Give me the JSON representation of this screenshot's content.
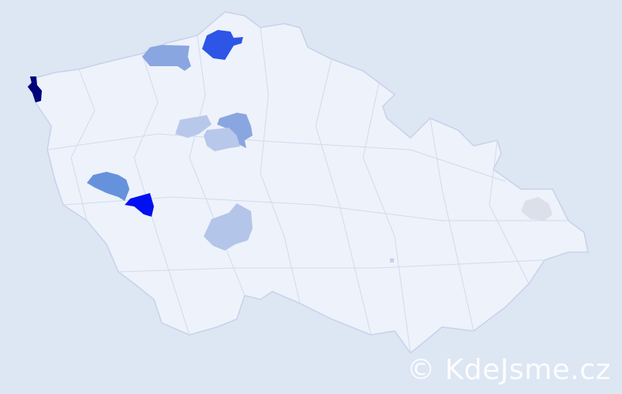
{
  "map": {
    "background_color": "#dde6f3",
    "country_fill": "#eef2fa",
    "border_color": "#c8d2ea",
    "highlighted_regions": [
      {
        "name": "far-west-district",
        "color": "#00007a"
      },
      {
        "name": "north-district-dark",
        "color": "#2d55e6"
      },
      {
        "name": "north-west-district",
        "color": "#8aa6e0"
      },
      {
        "name": "central-north-district",
        "color": "#8aa6e0"
      },
      {
        "name": "central-west-light",
        "color": "#b8c8ea"
      },
      {
        "name": "central-light",
        "color": "#b8c8ea"
      },
      {
        "name": "south-central-light",
        "color": "#b3c5e8"
      },
      {
        "name": "south-west-mid",
        "color": "#6692dc"
      },
      {
        "name": "south-west-bright",
        "color": "#0010f0"
      },
      {
        "name": "east-gray",
        "color": "#dde0ea"
      }
    ]
  },
  "watermark": "© KdeJsme.cz"
}
